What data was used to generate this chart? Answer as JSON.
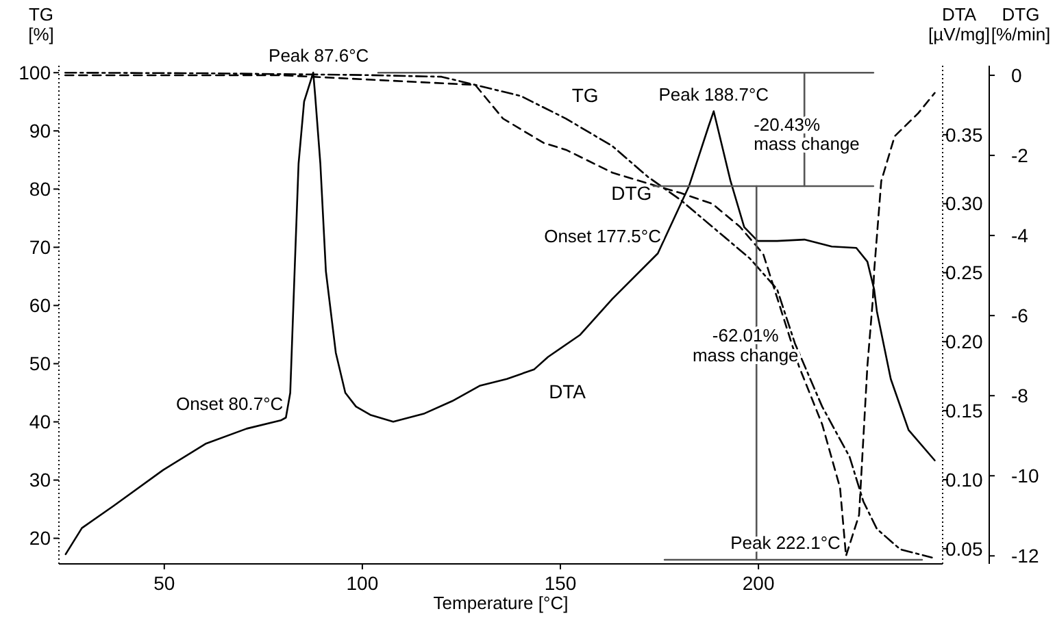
{
  "chart_data": {
    "type": "line",
    "xlabel": "Temperature [°C]",
    "ylabel": "TG\n[%]",
    "y2label": "DTA\n[µV/mg]",
    "y3label": "DTG\n[%/min]",
    "xlim": [
      23.4,
      246.5
    ],
    "xticks": [
      50,
      100,
      150,
      200
    ],
    "ylim": [
      15.6,
      101.2
    ],
    "yticks": [
      20,
      30,
      40,
      50,
      60,
      70,
      80,
      90,
      100
    ],
    "y2lim": [
      0.039,
      0.4
    ],
    "y2ticks": [
      {
        "value": 0.05,
        "label": "0.05"
      },
      {
        "value": 0.1,
        "label": "0.10"
      },
      {
        "value": 0.15,
        "label": "0.15"
      },
      {
        "value": 0.2,
        "label": "0.20"
      },
      {
        "value": 0.25,
        "label": "0.25"
      },
      {
        "value": 0.3,
        "label": "0.30"
      },
      {
        "value": 0.35,
        "label": "0.35"
      }
    ],
    "y3lim": [
      -12.2,
      0.24
    ],
    "y3ticks": [
      0,
      -2,
      -4,
      -6,
      -8,
      -10,
      -12
    ],
    "grid": false,
    "legend": false,
    "marker": "none",
    "series": [
      {
        "name": "TG",
        "type": "line",
        "color": "#000000",
        "line_style": "dashdot",
        "x": [
          25,
          60,
          100,
          120,
          128.5,
          140,
          151.4,
          163.1,
          172.1,
          180.4,
          188.4,
          197.8,
          204.7,
          209.2,
          216.1,
          223,
          226.5,
          229.9,
          235.8,
          243.8
        ],
        "values": [
          100,
          99.9,
          99.6,
          99.3,
          97.9,
          96,
          92.1,
          87.4,
          82.1,
          78.1,
          73.5,
          68.1,
          62.8,
          53.5,
          42.6,
          34,
          26.3,
          21.6,
          18.1,
          16.7
        ]
      },
      {
        "name": "DTA",
        "type": "line",
        "axis": "y2",
        "color": "#000000",
        "line_style": "solid",
        "x": [
          25.1,
          29.2,
          37.2,
          49.7,
          60.4,
          70.8,
          79.4,
          80.7,
          81.8,
          82.9,
          83.9,
          85.3,
          87.6,
          88.1,
          89.4,
          90.8,
          93.3,
          95.7,
          98.4,
          102,
          107.8,
          115.7,
          122.7,
          129.6,
          136.5,
          143.4,
          146.9,
          155,
          163.1,
          174.6,
          182.5,
          187.4,
          188.7,
          192.9,
          196.4,
          199.8,
          204.7,
          211.6,
          218.5,
          224.7,
          227.5,
          229.2,
          229.9,
          233.4,
          237.9,
          244.5
        ],
        "values": [
          0.046,
          0.065,
          0.081,
          0.107,
          0.126,
          0.137,
          0.143,
          0.145,
          0.163,
          0.251,
          0.329,
          0.374,
          0.395,
          0.378,
          0.329,
          0.251,
          0.192,
          0.163,
          0.153,
          0.147,
          0.142,
          0.148,
          0.157,
          0.168,
          0.173,
          0.18,
          0.189,
          0.205,
          0.231,
          0.264,
          0.313,
          0.356,
          0.367,
          0.317,
          0.283,
          0.273,
          0.273,
          0.274,
          0.269,
          0.268,
          0.258,
          0.238,
          0.222,
          0.173,
          0.136,
          0.114
        ]
      },
      {
        "name": "DTG",
        "type": "line",
        "axis": "y3",
        "color": "#000000",
        "line_style": "dashed",
        "x": [
          25,
          80,
          128.5,
          135.5,
          145.8,
          151.4,
          163.1,
          172.1,
          180.4,
          188.4,
          195.3,
          201.2,
          210.2,
          216.1,
          220.6,
          222.1,
          225.4,
          227.5,
          228.9,
          229.2,
          231,
          234.4,
          240.3,
          244.5
        ],
        "values": [
          0,
          0,
          -0.24,
          -1.08,
          -1.69,
          -1.86,
          -2.43,
          -2.7,
          -2.94,
          -3.21,
          -3.78,
          -4.46,
          -7.26,
          -8.72,
          -10.3,
          -12,
          -10.98,
          -7.26,
          -5.57,
          -4.9,
          -2.64,
          -1.52,
          -0.95,
          -0.44
        ]
      },
      {
        "type": "line",
        "color": "#555555",
        "line_style": "solid",
        "x": [
          104,
          229
        ],
        "values": [
          100,
          100
        ]
      },
      {
        "type": "line",
        "color": "#555555",
        "line_style": "solid",
        "x": [
          211.6,
          211.6
        ],
        "values": [
          100,
          80.5
        ]
      },
      {
        "type": "line",
        "color": "#555555",
        "line_style": "solid",
        "x": [
          173.5,
          229
        ],
        "values": [
          80.5,
          80.5
        ]
      },
      {
        "type": "line",
        "color": "#555555",
        "line_style": "solid",
        "x": [
          199.5,
          199.5
        ],
        "values": [
          80.5,
          16.3
        ]
      },
      {
        "type": "line",
        "color": "#555555",
        "line_style": "solid",
        "x": [
          176.3,
          241.3
        ],
        "values": [
          16.3,
          16.3
        ]
      }
    ],
    "annotations": [
      {
        "text": "Peak 87.6°C",
        "x": 87.6,
        "y": 100
      },
      {
        "text": "Onset 80.7°C",
        "x": 80.7,
        "y": 40.7
      },
      {
        "text": "Peak 188.7°C",
        "x": 188.7,
        "y": 93.3
      },
      {
        "text": "Onset 177.5°C",
        "x": 177.5,
        "y": 72.8
      },
      {
        "text": "-20.43%\nmass change",
        "x": 211.6,
        "y": 90
      },
      {
        "text": "-62.01%\nmass change",
        "x": 199.5,
        "y": 49
      },
      {
        "text": "Peak 222.1°C",
        "x": 222.1,
        "y": 16.3
      }
    ]
  }
}
